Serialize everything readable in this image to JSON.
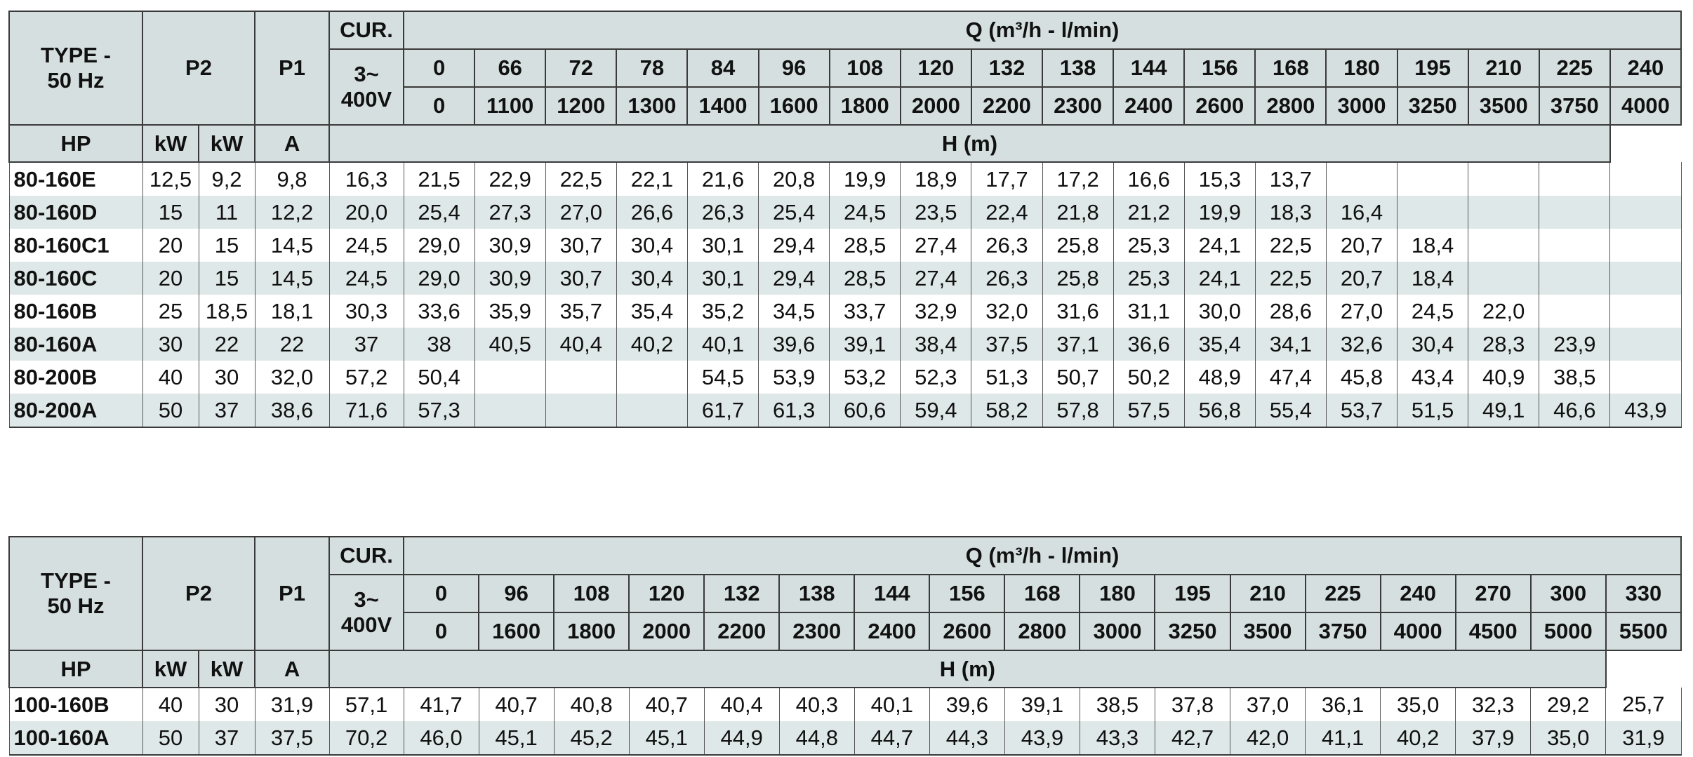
{
  "tables": [
    {
      "header": {
        "type": "TYPE -\n50 Hz",
        "p2": "P2",
        "p1": "P1",
        "cur": "CUR.",
        "voltage": "3~\n400V",
        "q": "Q (m³/h - l/min)",
        "flow_m3h": [
          "0",
          "66",
          "72",
          "78",
          "84",
          "96",
          "108",
          "120",
          "132",
          "138",
          "144",
          "156",
          "168",
          "180",
          "195",
          "210",
          "225",
          "240"
        ],
        "flow_lmin": [
          "0",
          "1100",
          "1200",
          "1300",
          "1400",
          "1600",
          "1800",
          "2000",
          "2200",
          "2300",
          "2400",
          "2600",
          "2800",
          "3000",
          "3250",
          "3500",
          "3750",
          "4000"
        ],
        "units": [
          "HP",
          "kW",
          "kW",
          "A"
        ],
        "h": "H (m)"
      },
      "rows": [
        [
          "80-160E",
          "12,5",
          "9,2",
          "9,8",
          "16,3",
          "21,5",
          "22,9",
          "22,5",
          "22,1",
          "21,6",
          "20,8",
          "19,9",
          "18,9",
          "17,7",
          "17,2",
          "16,6",
          "15,3",
          "13,7",
          null,
          null,
          null,
          null,
          null
        ],
        [
          "80-160D",
          "15",
          "11",
          "12,2",
          "20,0",
          "25,4",
          "27,3",
          "27,0",
          "26,6",
          "26,3",
          "25,4",
          "24,5",
          "23,5",
          "22,4",
          "21,8",
          "21,2",
          "19,9",
          "18,3",
          "16,4",
          null,
          null,
          null,
          null
        ],
        [
          "80-160C1",
          "20",
          "15",
          "14,5",
          "24,5",
          "29,0",
          "30,9",
          "30,7",
          "30,4",
          "30,1",
          "29,4",
          "28,5",
          "27,4",
          "26,3",
          "25,8",
          "25,3",
          "24,1",
          "22,5",
          "20,7",
          "18,4",
          null,
          null,
          null
        ],
        [
          "80-160C",
          "20",
          "15",
          "14,5",
          "24,5",
          "29,0",
          "30,9",
          "30,7",
          "30,4",
          "30,1",
          "29,4",
          "28,5",
          "27,4",
          "26,3",
          "25,8",
          "25,3",
          "24,1",
          "22,5",
          "20,7",
          "18,4",
          null,
          null,
          null
        ],
        [
          "80-160B",
          "25",
          "18,5",
          "18,1",
          "30,3",
          "33,6",
          "35,9",
          "35,7",
          "35,4",
          "35,2",
          "34,5",
          "33,7",
          "32,9",
          "32,0",
          "31,6",
          "31,1",
          "30,0",
          "28,6",
          "27,0",
          "24,5",
          "22,0",
          null,
          null
        ],
        [
          "80-160A",
          "30",
          "22",
          "22",
          "37",
          "38",
          "40,5",
          "40,4",
          "40,2",
          "40,1",
          "39,6",
          "39,1",
          "38,4",
          "37,5",
          "37,1",
          "36,6",
          "35,4",
          "34,1",
          "32,6",
          "30,4",
          "28,3",
          "23,9",
          null
        ],
        [
          "80-200B",
          "40",
          "30",
          "32,0",
          "57,2",
          "50,4",
          null,
          null,
          null,
          "54,5",
          "53,9",
          "53,2",
          "52,3",
          "51,3",
          "50,7",
          "50,2",
          "48,9",
          "47,4",
          "45,8",
          "43,4",
          "40,9",
          "38,5",
          null
        ],
        [
          "80-200A",
          "50",
          "37",
          "38,6",
          "71,6",
          "57,3",
          null,
          null,
          null,
          "61,7",
          "61,3",
          "60,6",
          "59,4",
          "58,2",
          "57,8",
          "57,5",
          "56,8",
          "55,4",
          "53,7",
          "51,5",
          "49,1",
          "46,6",
          "43,9"
        ]
      ]
    },
    {
      "header": {
        "type": "TYPE -\n50 Hz",
        "p2": "P2",
        "p1": "P1",
        "cur": "CUR.",
        "voltage": "3~\n400V",
        "q": "Q (m³/h - l/min)",
        "flow_m3h": [
          "0",
          "96",
          "108",
          "120",
          "132",
          "138",
          "144",
          "156",
          "168",
          "180",
          "195",
          "210",
          "225",
          "240",
          "270",
          "300",
          "330"
        ],
        "flow_lmin": [
          "0",
          "1600",
          "1800",
          "2000",
          "2200",
          "2300",
          "2400",
          "2600",
          "2800",
          "3000",
          "3250",
          "3500",
          "3750",
          "4000",
          "4500",
          "5000",
          "5500"
        ],
        "units": [
          "HP",
          "kW",
          "kW",
          "A"
        ],
        "h": "H (m)"
      },
      "rows": [
        [
          "100-160B",
          "40",
          "30",
          "31,9",
          "57,1",
          "41,7",
          "40,7",
          "40,8",
          "40,7",
          "40,4",
          "40,3",
          "40,1",
          "39,6",
          "39,1",
          "38,5",
          "37,8",
          "37,0",
          "36,1",
          "35,0",
          "32,3",
          "29,2",
          "25,7"
        ],
        [
          "100-160A",
          "50",
          "37",
          "37,5",
          "70,2",
          "46,0",
          "45,1",
          "45,2",
          "45,1",
          "44,9",
          "44,8",
          "44,7",
          "44,3",
          "43,9",
          "43,3",
          "42,7",
          "42,0",
          "41,1",
          "40,2",
          "37,9",
          "35,0",
          "31,9"
        ]
      ]
    }
  ]
}
